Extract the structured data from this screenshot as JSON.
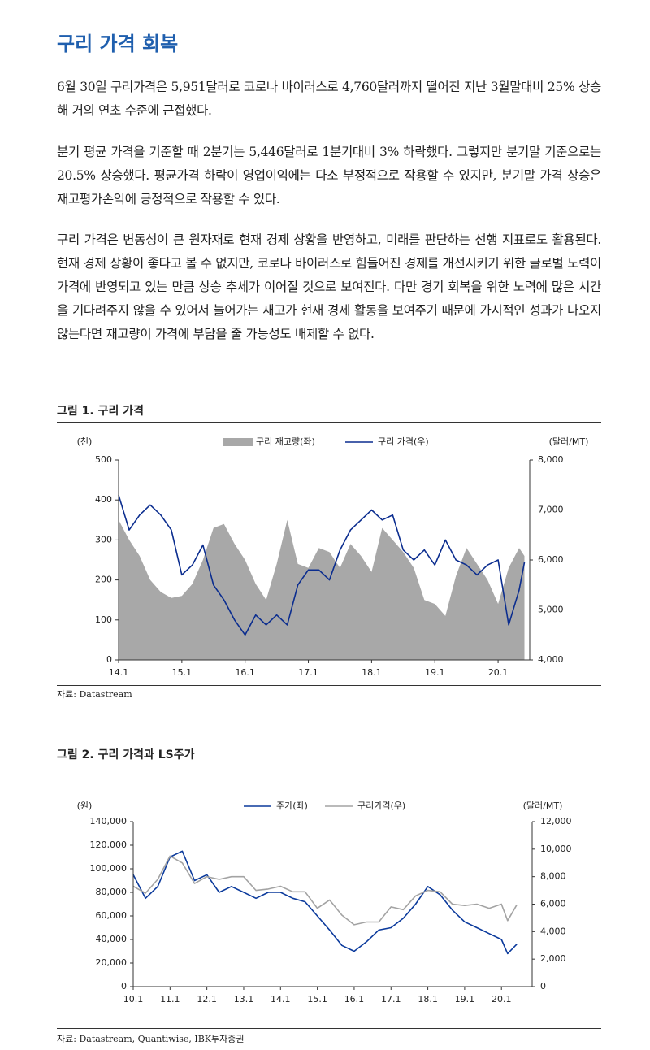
{
  "document": {
    "title": "구리 가격 회복",
    "paragraphs": [
      "6월 30일 구리가격은 5,951달러로 코로나 바이러스로 4,760달러까지 떨어진 지난 3월말대비 25% 상승해 거의 연초 수준에 근접했다.",
      "분기 평균 가격을 기준할 때 2분기는 5,446달러로 1분기대비 3% 하락했다. 그렇지만 분기말 기준으로는 20.5% 상승했다. 평균가격 하락이 영업이익에는 다소 부정적으로 작용할 수 있지만, 분기말 가격 상승은 재고평가손익에 긍정적으로 작용할 수 있다.",
      "구리 가격은 변동성이 큰 원자재로 현재 경제 상황을 반영하고, 미래를 판단하는 선행 지표로도 활용된다. 현재 경제 상황이 좋다고 볼 수 없지만, 코로나 바이러스로 힘들어진 경제를 개선시키기 위한 글로벌 노력이 가격에 반영되고 있는 만큼 상승 추세가 이어질 것으로 보여진다. 다만 경기 회복을 위한 노력에 많은 시간을 기다려주지 않을 수 있어서 늘어가는 재고가 현재 경제 활동을 보여주기 때문에 가시적인 성과가 나오지 않는다면 재고량이 가격에 부담을 줄 가능성도 배제할 수 없다."
    ]
  },
  "chart_data": [
    {
      "type": "combo",
      "title": "그림 1. 구리 가격",
      "source": "자료: Datastream",
      "y_unit": "(천)",
      "y2_unit": "(달러/MT)",
      "x": [
        "14.1",
        "14.3",
        "14.5",
        "14.7",
        "14.9",
        "14.11",
        "15.1",
        "15.3",
        "15.5",
        "15.7",
        "15.9",
        "15.11",
        "16.1",
        "16.3",
        "16.5",
        "16.7",
        "16.9",
        "16.11",
        "17.1",
        "17.3",
        "17.5",
        "17.7",
        "17.9",
        "17.11",
        "18.1",
        "18.3",
        "18.5",
        "18.7",
        "18.9",
        "18.11",
        "19.1",
        "19.3",
        "19.5",
        "19.7",
        "19.9",
        "19.11",
        "20.1",
        "20.3",
        "20.5",
        "20.6"
      ],
      "xlim": [
        "14.1",
        "20.7"
      ],
      "xticks": [
        "14.1",
        "15.1",
        "16.1",
        "17.1",
        "18.1",
        "19.1",
        "20.1"
      ],
      "ylim": [
        0,
        500
      ],
      "yticks": [
        0,
        100,
        200,
        300,
        400,
        500
      ],
      "y2lim": [
        4000,
        8000
      ],
      "y2ticks": [
        {
          "value": 4000,
          "label": "4,000"
        },
        {
          "value": 5000,
          "label": "5,000"
        },
        {
          "value": 6000,
          "label": "6,000"
        },
        {
          "value": 7000,
          "label": "7,000"
        },
        {
          "value": 8000,
          "label": "8,000"
        }
      ],
      "series": [
        {
          "name": "구리 재고량(좌)",
          "type": "area",
          "color": "#a8a8a8",
          "values": [
            350,
            300,
            260,
            200,
            170,
            155,
            160,
            190,
            250,
            330,
            340,
            290,
            250,
            190,
            150,
            240,
            350,
            240,
            230,
            280,
            270,
            230,
            290,
            260,
            220,
            330,
            300,
            270,
            230,
            150,
            140,
            110,
            210,
            280,
            240,
            200,
            140,
            230,
            280,
            260
          ]
        },
        {
          "name": "구리 가격(우)",
          "type": "line",
          "axis": "y2",
          "color": "#0b2d8f",
          "values": [
            7300,
            6600,
            6900,
            7100,
            6900,
            6600,
            5700,
            5900,
            6300,
            5500,
            5200,
            4800,
            4500,
            4900,
            4700,
            4900,
            4700,
            5500,
            5800,
            5800,
            5600,
            6200,
            6600,
            6800,
            7000,
            6800,
            6900,
            6200,
            6000,
            6200,
            5900,
            6400,
            6000,
            5900,
            5700,
            5900,
            6000,
            4700,
            5400,
            5951
          ]
        }
      ]
    },
    {
      "type": "combo",
      "title": "그림 2. 구리 가격과 LS주가",
      "source": "자료: Datastream, Quantiwise, IBK투자증권",
      "y_unit": "(원)",
      "y2_unit": "(달러/MT)",
      "x": [
        "10.1",
        "10.5",
        "10.9",
        "11.1",
        "11.5",
        "11.9",
        "12.1",
        "12.5",
        "12.9",
        "13.1",
        "13.5",
        "13.9",
        "14.1",
        "14.5",
        "14.9",
        "15.1",
        "15.5",
        "15.9",
        "16.1",
        "16.5",
        "16.9",
        "17.1",
        "17.5",
        "17.9",
        "18.1",
        "18.5",
        "18.9",
        "19.1",
        "19.5",
        "19.9",
        "20.1",
        "20.3",
        "20.6"
      ],
      "xlim": [
        "10.1",
        "20.11"
      ],
      "xticks": [
        "10.1",
        "11.1",
        "12.1",
        "13.1",
        "14.1",
        "15.1",
        "16.1",
        "17.1",
        "18.1",
        "19.1",
        "20.1"
      ],
      "ylim": [
        0,
        140000
      ],
      "yticks": [
        0,
        {
          "value": 20000,
          "label": "20,000"
        },
        {
          "value": 40000,
          "label": "40,000"
        },
        {
          "value": 60000,
          "label": "60,000"
        },
        {
          "value": 80000,
          "label": "80,000"
        },
        {
          "value": 100000,
          "label": "100,000"
        },
        {
          "value": 120000,
          "label": "120,000"
        },
        {
          "value": 140000,
          "label": "140,000"
        }
      ],
      "y2lim": [
        0,
        12000
      ],
      "y2ticks": [
        0,
        {
          "value": 2000,
          "label": "2,000"
        },
        {
          "value": 4000,
          "label": "4,000"
        },
        {
          "value": 6000,
          "label": "6,000"
        },
        {
          "value": 8000,
          "label": "8,000"
        },
        {
          "value": 10000,
          "label": "10,000"
        },
        {
          "value": 12000,
          "label": "12,000"
        }
      ],
      "series": [
        {
          "name": "주가(좌)",
          "type": "line",
          "color": "#0b3a9c",
          "values": [
            95000,
            75000,
            85000,
            110000,
            115000,
            90000,
            95000,
            80000,
            85000,
            80000,
            75000,
            80000,
            80000,
            75000,
            72000,
            60000,
            48000,
            35000,
            30000,
            38000,
            48000,
            50000,
            58000,
            70000,
            85000,
            78000,
            65000,
            55000,
            50000,
            45000,
            40000,
            28000,
            36000
          ]
        },
        {
          "name": "구리가격(우)",
          "type": "line",
          "axis": "y2",
          "color": "#a3a3a3",
          "values": [
            7300,
            6800,
            7800,
            9500,
            9000,
            7500,
            8000,
            7800,
            8000,
            8000,
            7000,
            7100,
            7300,
            6900,
            6900,
            5700,
            6300,
            5200,
            4500,
            4700,
            4700,
            5800,
            5600,
            6600,
            7000,
            6900,
            6000,
            5900,
            6000,
            5700,
            6000,
            4800,
            5951
          ]
        }
      ]
    }
  ]
}
